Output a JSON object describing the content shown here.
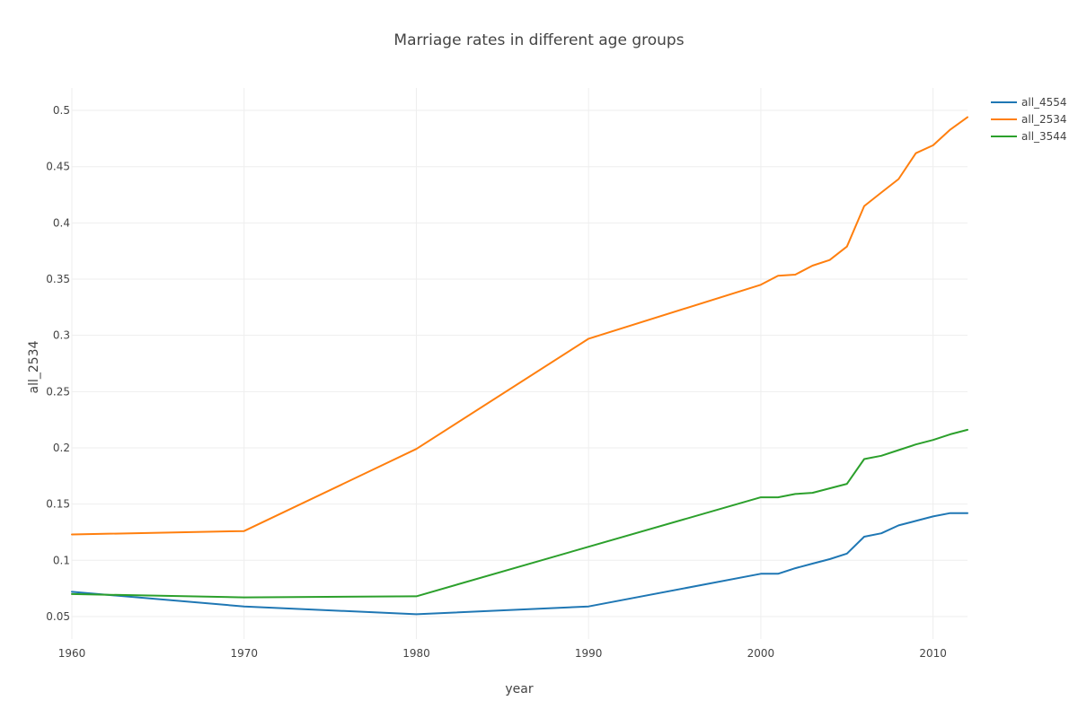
{
  "chart_data": {
    "type": "line",
    "title": "Marriage rates in different age groups",
    "xlabel": "year",
    "ylabel": "all_2534",
    "xlim": [
      1960,
      2012
    ],
    "ylim": [
      0.03,
      0.52
    ],
    "x_ticks": [
      1960,
      1970,
      1980,
      1990,
      2000,
      2010
    ],
    "y_ticks": [
      0.05,
      0.1,
      0.15,
      0.2,
      0.25,
      0.3,
      0.35,
      0.4,
      0.45,
      0.5
    ],
    "y_tick_labels": [
      "0.05",
      "0.1",
      "0.15",
      "0.2",
      "0.25",
      "0.3",
      "0.35",
      "0.4",
      "0.45",
      "0.5"
    ],
    "grid": true,
    "legend_position": "top-right",
    "x": [
      1960,
      1970,
      1980,
      1990,
      2000,
      2001,
      2002,
      2003,
      2004,
      2005,
      2006,
      2007,
      2008,
      2009,
      2010,
      2011,
      2012
    ],
    "series": [
      {
        "name": "all_4554",
        "color": "#1f77b4",
        "values": [
          0.072,
          0.059,
          0.052,
          0.059,
          0.088,
          0.088,
          0.093,
          0.097,
          0.101,
          0.106,
          0.121,
          0.124,
          0.131,
          0.135,
          0.139,
          0.142,
          0.142
        ]
      },
      {
        "name": "all_2534",
        "color": "#ff7f0e",
        "values": [
          0.123,
          0.126,
          0.199,
          0.297,
          0.345,
          0.353,
          0.354,
          0.362,
          0.367,
          0.379,
          0.415,
          0.427,
          0.439,
          0.462,
          0.469,
          0.483,
          0.494
        ]
      },
      {
        "name": "all_3544",
        "color": "#2ca02c",
        "values": [
          0.07,
          0.067,
          0.068,
          0.112,
          0.156,
          0.156,
          0.159,
          0.16,
          0.164,
          0.168,
          0.19,
          0.193,
          0.198,
          0.203,
          0.207,
          0.212,
          0.216
        ]
      }
    ]
  }
}
